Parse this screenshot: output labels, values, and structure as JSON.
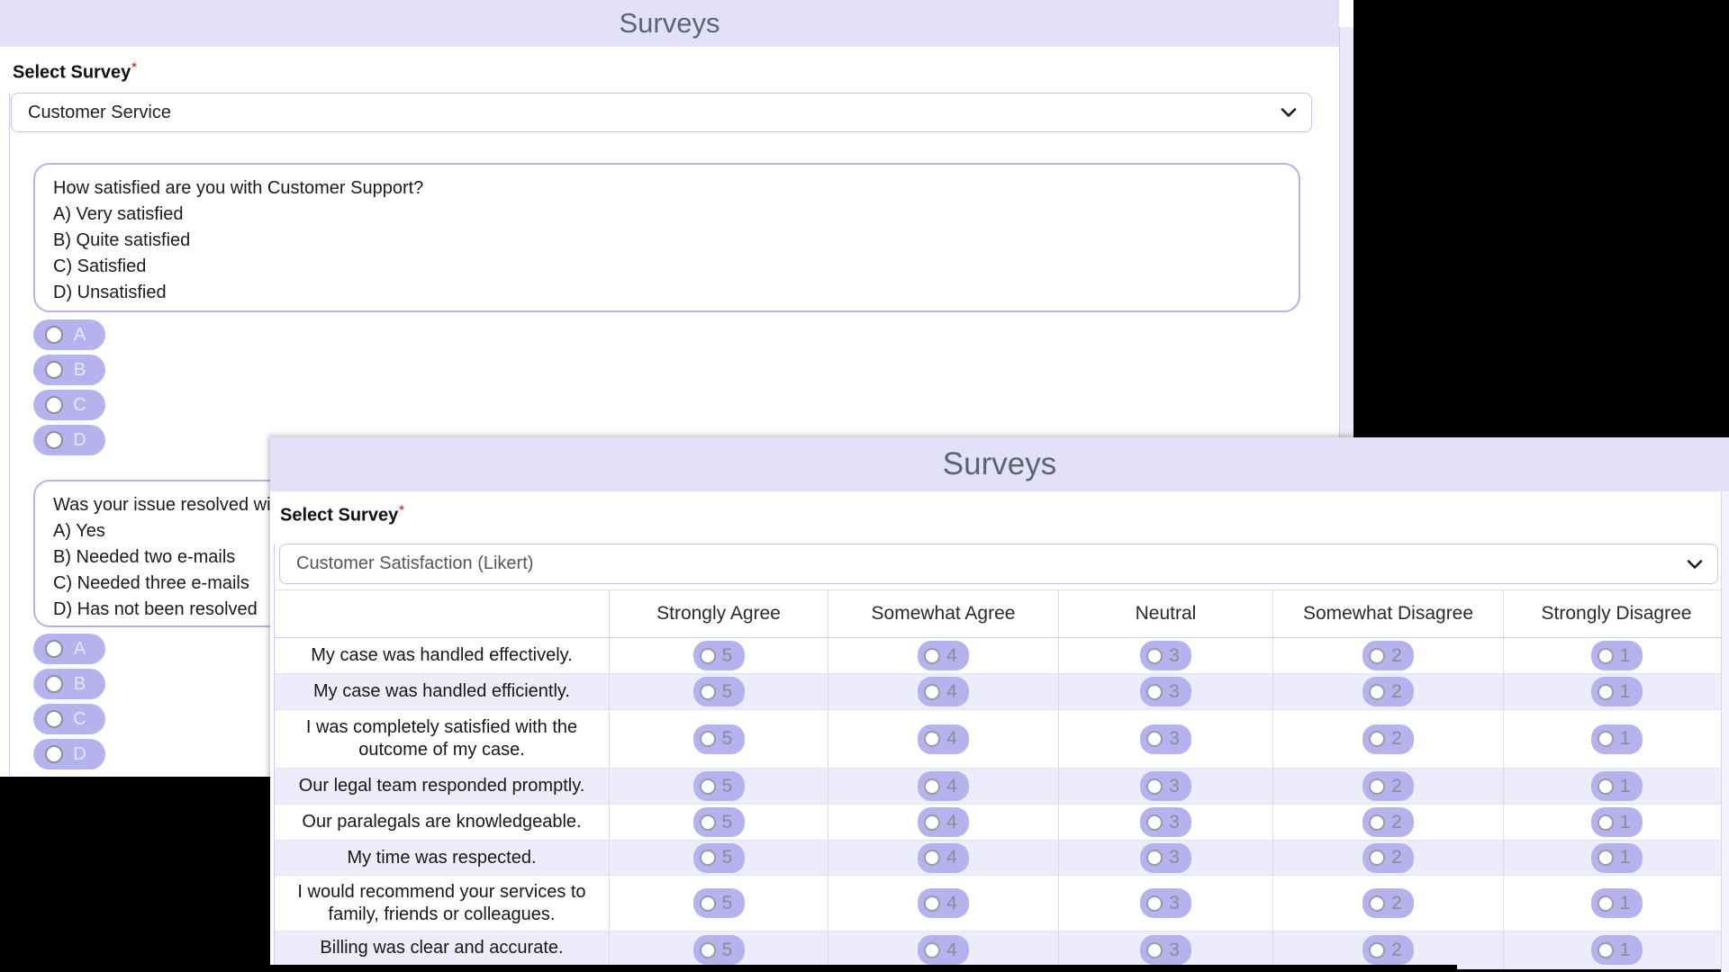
{
  "colors": {
    "accent_lavender": "#b6b2ee",
    "header_bar": "#e3e1f7",
    "alt_row": "#edecfb",
    "title_text": "#5e6470",
    "required_red": "#e53935",
    "canvas_black": "#000000"
  },
  "back_window": {
    "title": "Surveys",
    "select": {
      "label": "Select Survey",
      "required_mark": "*",
      "value": "Customer Service",
      "chevron_icon": "chevron-down"
    },
    "question1": {
      "lines": [
        "How satisfied are you with Customer Support?",
        "A) Very satisfied",
        "B) Quite satisfied",
        "C) Satisfied",
        "D) Unsatisfied"
      ]
    },
    "question1_choices": [
      "A",
      "B",
      "C",
      "D"
    ],
    "question2": {
      "lines": [
        "Was your issue resolved with o",
        "A) Yes",
        "B) Needed two e-mails",
        "C) Needed three e-mails",
        "D) Has not been resolved"
      ]
    },
    "question2_choices": [
      "A",
      "B",
      "C",
      "D"
    ]
  },
  "front_window": {
    "title": "Surveys",
    "select": {
      "label": "Select Survey",
      "required_mark": "*",
      "value": "Customer Satisfaction (Likert)",
      "chevron_icon": "chevron-down"
    },
    "likert_table": {
      "column_headers": [
        "Strongly Agree",
        "Somewhat Agree",
        "Neutral",
        "Somewhat Disagree",
        "Strongly Disagree"
      ],
      "option_values": [
        "5",
        "4",
        "3",
        "2",
        "1"
      ],
      "statements": [
        "My case was handled effectively.",
        "My case was handled efficiently.",
        "I was completely satisfied with the outcome of my case.",
        "Our legal team responded promptly.",
        "Our paralegals are knowledgeable.",
        "My time was respected.",
        "I would recommend your services to family, friends or colleagues.",
        "Billing was clear and accurate."
      ]
    }
  }
}
